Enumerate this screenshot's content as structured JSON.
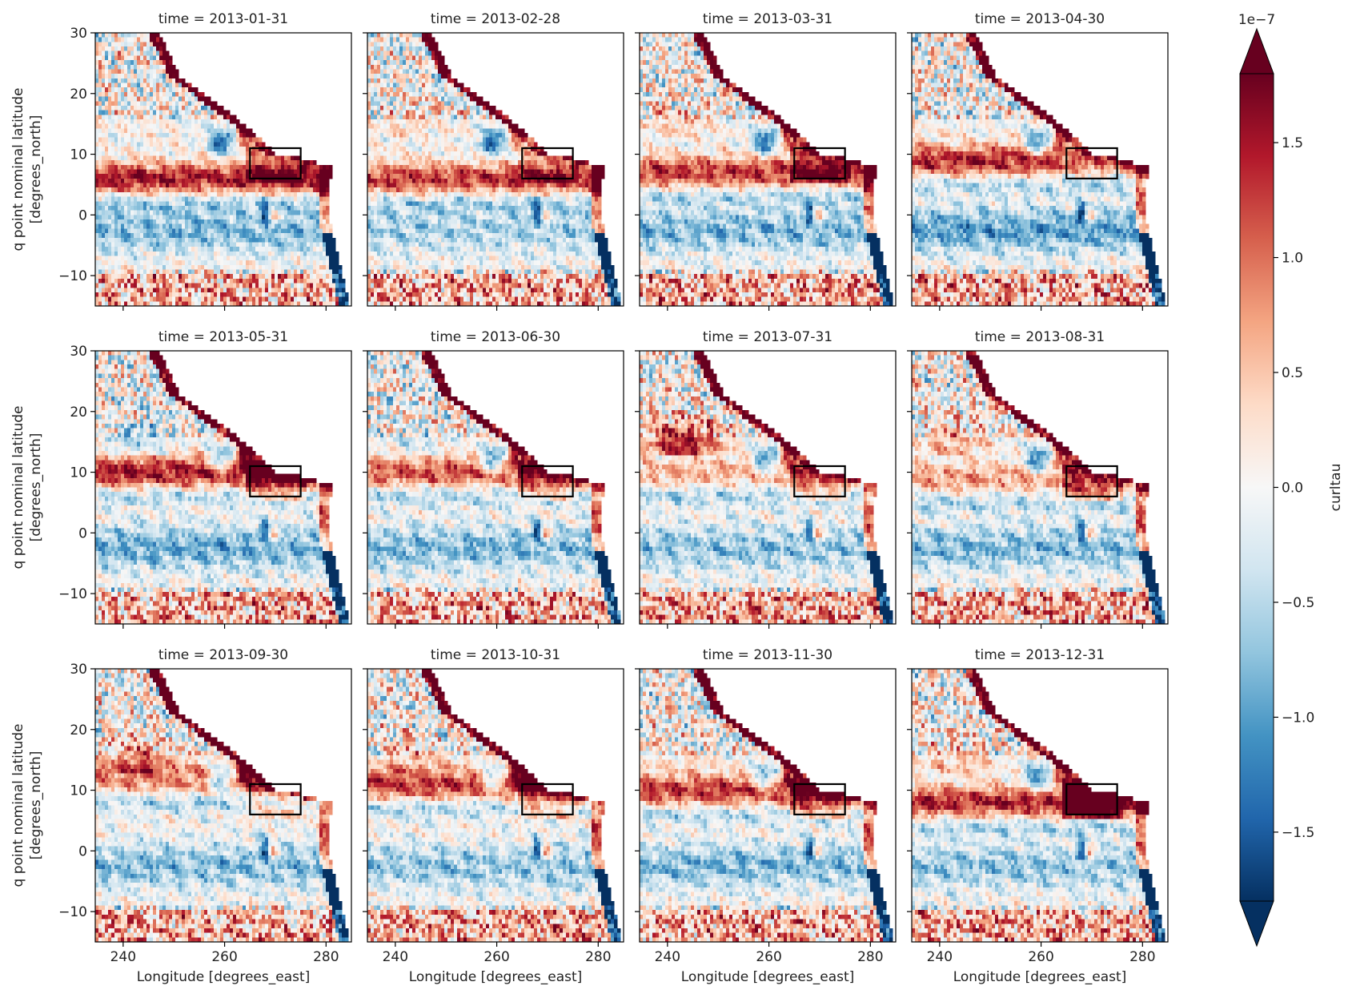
{
  "chart_data": {
    "type": "heatmap",
    "layout": "facet-grid 3x4",
    "variable": "curltau",
    "colormap": "RdBu_r",
    "colorbar": {
      "label": "curltau",
      "exponent_label": "1e−7",
      "ticks": [
        1.5,
        1.0,
        0.5,
        0.0,
        -0.5,
        -1.0,
        -1.5
      ],
      "tick_labels": [
        "1.5",
        "1.0",
        "0.5",
        "0.0",
        "−0.5",
        "−1.0",
        "−1.5"
      ],
      "range": [
        -1.8,
        1.8
      ],
      "extend": "both"
    },
    "xlabel": "Longitude [degrees_east]",
    "ylabel_lines": [
      "q point nominal latitude",
      "[degrees_north]"
    ],
    "xlim": [
      234.5,
      285
    ],
    "ylim": [
      -15,
      30
    ],
    "xticks": [
      240,
      260,
      280
    ],
    "yticks": [
      30,
      20,
      10,
      0,
      -10
    ],
    "highlight_box": {
      "lon": [
        265,
        275
      ],
      "lat": [
        6,
        11
      ]
    },
    "panels": [
      {
        "title": "time = 2013-01-31",
        "box_anom": 0.7,
        "itcz_lat": 6,
        "itcz_amp": 1.5,
        "south_band": -0.8,
        "nw_anom": 0.1
      },
      {
        "title": "time = 2013-02-28",
        "box_anom": 0.5,
        "itcz_lat": 6,
        "itcz_amp": 1.3,
        "south_band": -0.6,
        "nw_anom": 0.3
      },
      {
        "title": "time = 2013-03-31",
        "box_anom": 0.8,
        "itcz_lat": 7,
        "itcz_amp": 1.3,
        "south_band": -0.8,
        "nw_anom": 0.4
      },
      {
        "title": "time = 2013-04-30",
        "box_anom": -0.3,
        "itcz_lat": 9,
        "itcz_amp": 1.4,
        "south_band": -1.0,
        "nw_anom": 0.0
      },
      {
        "title": "time = 2013-05-31",
        "box_anom": 1.0,
        "itcz_lat": 10,
        "itcz_amp": 1.5,
        "south_band": -0.9,
        "nw_anom": -0.5
      },
      {
        "title": "time = 2013-06-30",
        "box_anom": 0.8,
        "itcz_lat": 10,
        "itcz_amp": 1.1,
        "south_band": -0.8,
        "nw_anom": -0.3
      },
      {
        "title": "time = 2013-07-31",
        "box_anom": 0.8,
        "itcz_lat": 10,
        "itcz_amp": 0.6,
        "south_band": -0.7,
        "nw_anom": 1.5
      },
      {
        "title": "time = 2013-08-31",
        "box_anom": 0.9,
        "itcz_lat": 9,
        "itcz_amp": 0.7,
        "south_band": -0.8,
        "nw_anom": 0.6
      },
      {
        "title": "time = 2013-09-30",
        "box_anom": 0.6,
        "itcz_lat": 12,
        "itcz_amp": 0.9,
        "south_band": -0.8,
        "nw_anom": 0.8
      },
      {
        "title": "time = 2013-10-31",
        "box_anom": 0.9,
        "itcz_lat": 11,
        "itcz_amp": 1.3,
        "south_band": -0.7,
        "nw_anom": 0.4
      },
      {
        "title": "time = 2013-11-30",
        "box_anom": 1.0,
        "itcz_lat": 10,
        "itcz_amp": 1.3,
        "south_band": -0.8,
        "nw_anom": 0.2
      },
      {
        "title": "time = 2013-12-31",
        "box_anom": 1.5,
        "itcz_lat": 8,
        "itcz_amp": 1.4,
        "south_band": -0.7,
        "nw_anom": 0.5
      }
    ]
  }
}
